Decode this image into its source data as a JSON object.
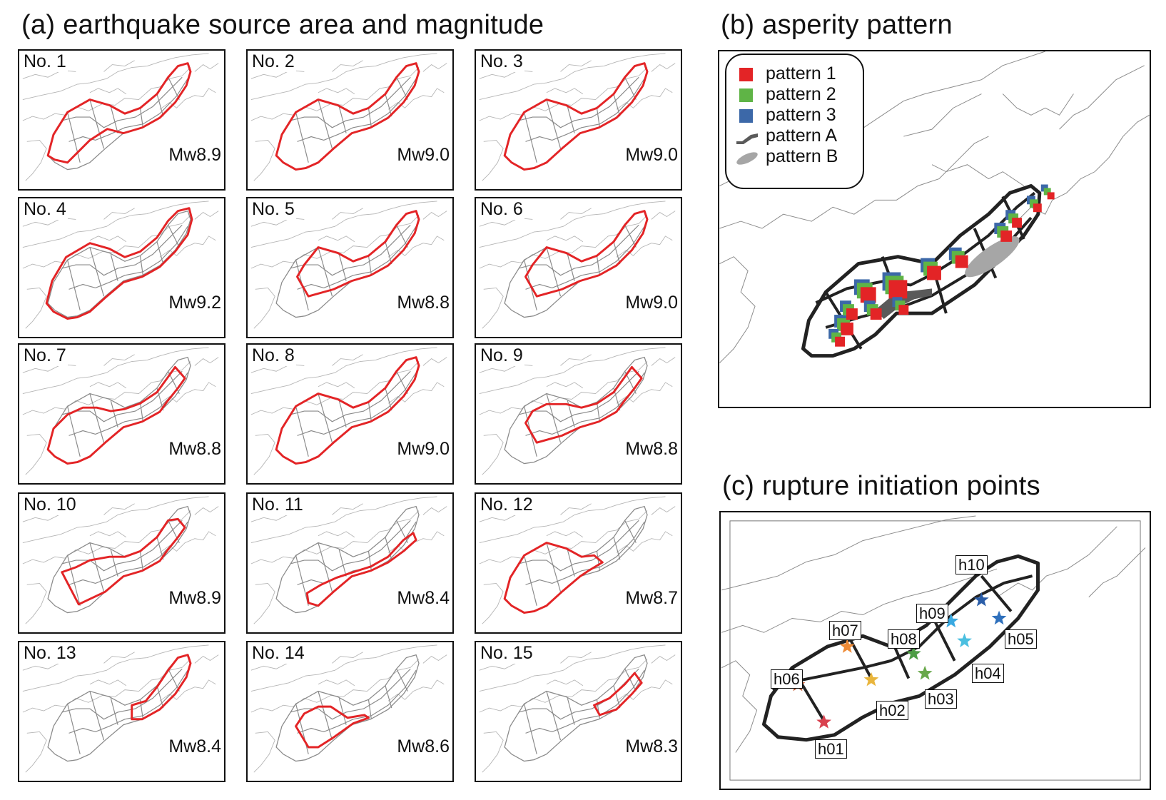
{
  "titles": {
    "a": "(a) earthquake source area and magnitude",
    "b": "(b)  asperity pattern",
    "c": "(c)  rupture initiation points"
  },
  "panels": [
    {
      "no": "No. 1",
      "mw": "Mw8.9",
      "rupture_segments": "full"
    },
    {
      "no": "No. 2",
      "mw": "Mw9.0",
      "rupture_segments": "full-deep"
    },
    {
      "no": "No. 3",
      "mw": "Mw9.0",
      "rupture_segments": "full-deep"
    },
    {
      "no": "No. 4",
      "mw": "Mw9.2",
      "rupture_segments": "full-wide"
    },
    {
      "no": "No. 5",
      "mw": "Mw8.8",
      "rupture_segments": "east-of-west-edge"
    },
    {
      "no": "No. 6",
      "mw": "Mw9.0",
      "rupture_segments": "east-of-west-edge"
    },
    {
      "no": "No. 7",
      "mw": "Mw8.8",
      "rupture_segments": "full-shallow"
    },
    {
      "no": "No. 8",
      "mw": "Mw9.0",
      "rupture_segments": "full-deep"
    },
    {
      "no": "No. 9",
      "mw": "Mw8.8",
      "rupture_segments": "central-east"
    },
    {
      "no": "No. 10",
      "mw": "Mw8.9",
      "rupture_segments": "central-east-wide"
    },
    {
      "no": "No. 11",
      "mw": "Mw8.4",
      "rupture_segments": "shallow-strip"
    },
    {
      "no": "No. 12",
      "mw": "Mw8.7",
      "rupture_segments": "west-central"
    },
    {
      "no": "No. 13",
      "mw": "Mw8.4",
      "rupture_segments": "east"
    },
    {
      "no": "No. 14",
      "mw": "Mw8.6",
      "rupture_segments": "central"
    },
    {
      "no": "No. 15",
      "mw": "Mw8.3",
      "rupture_segments": "east-small"
    }
  ],
  "legend": {
    "pattern1": "pattern 1",
    "pattern2": "pattern 2",
    "pattern3": "pattern 3",
    "patternA": "pattern A",
    "patternB": "pattern B"
  },
  "colors": {
    "rupture": "#e32426",
    "pattern1": "#e32426",
    "pattern2": "#5fb446",
    "pattern3": "#3c68a8",
    "patternA": "#5a5a5a",
    "patternB": "#a6a6a6",
    "grid": "#8a8a8a",
    "coast": "#b5b5b5"
  },
  "initiation_points": [
    {
      "label": "h01",
      "color": "#d9414f"
    },
    {
      "label": "h02",
      "color": "#e9b53c"
    },
    {
      "label": "h03",
      "color": "#68a84a"
    },
    {
      "label": "h04",
      "color": "#4bbfe0"
    },
    {
      "label": "h05",
      "color": "#2f70bc"
    },
    {
      "label": "h06",
      "color": "#c1562e"
    },
    {
      "label": "h07",
      "color": "#ee8a35"
    },
    {
      "label": "h08",
      "color": "#4d9d45"
    },
    {
      "label": "h09",
      "color": "#39a9e1"
    },
    {
      "label": "h10",
      "color": "#2a5da8"
    }
  ]
}
